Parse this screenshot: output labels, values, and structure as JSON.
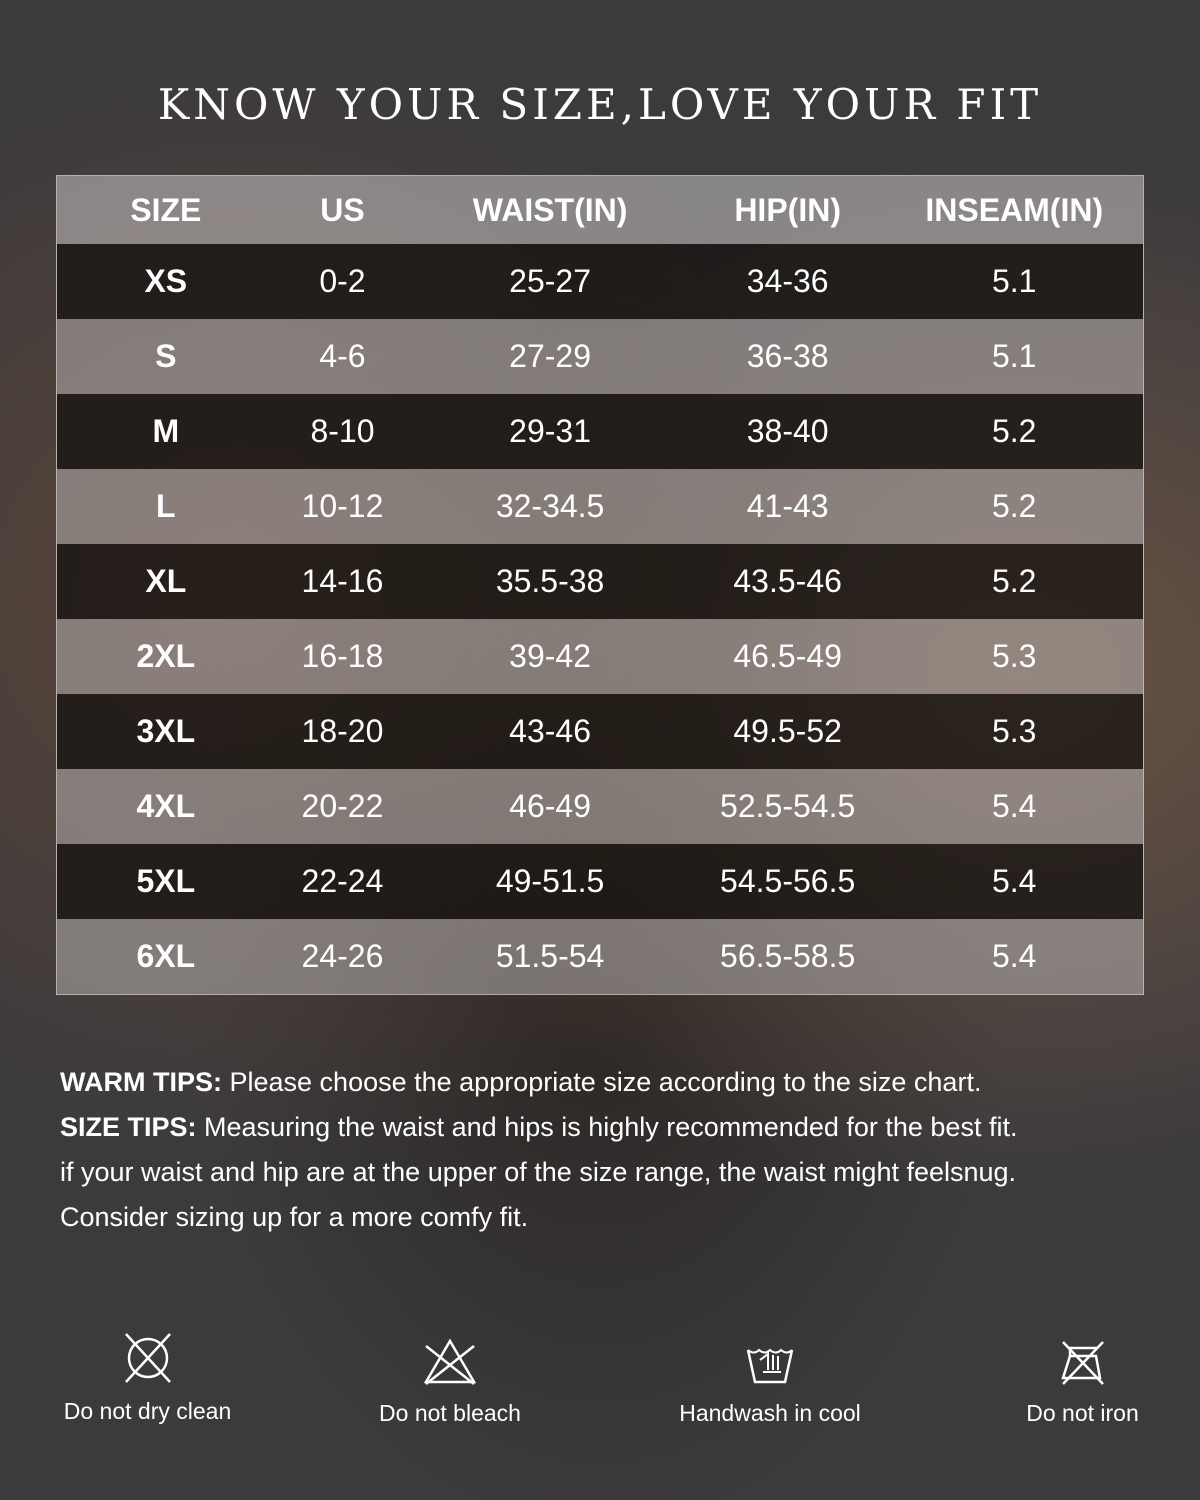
{
  "title": "KNOW YOUR SIZE,LOVE YOUR FIT",
  "table": {
    "headers": [
      "SIZE",
      "US",
      "WAIST(IN)",
      "HIP(IN)",
      "INSEAM(IN)"
    ],
    "rows": [
      [
        "XS",
        "0-2",
        "25-27",
        "34-36",
        "5.1"
      ],
      [
        "S",
        "4-6",
        "27-29",
        "36-38",
        "5.1"
      ],
      [
        "M",
        "8-10",
        "29-31",
        "38-40",
        "5.2"
      ],
      [
        "L",
        "10-12",
        "32-34.5",
        "41-43",
        "5.2"
      ],
      [
        "XL",
        "14-16",
        "35.5-38",
        "43.5-46",
        "5.2"
      ],
      [
        "2XL",
        "16-18",
        "39-42",
        "46.5-49",
        "5.3"
      ],
      [
        "3XL",
        "18-20",
        "43-46",
        "49.5-52",
        "5.3"
      ],
      [
        "4XL",
        "20-22",
        "46-49",
        "52.5-54.5",
        "5.4"
      ],
      [
        "5XL",
        "22-24",
        "49-51.5",
        "54.5-56.5",
        "5.4"
      ],
      [
        "6XL",
        "24-26",
        "51.5-54",
        "56.5-58.5",
        "5.4"
      ]
    ]
  },
  "tips": {
    "warm_label": "WARM TIPS:",
    "warm_text": " Please choose the appropriate size according to the size chart.",
    "size_label": "SIZE TIPS:",
    "size_text": " Measuring the waist and hips is highly recommended for the best fit.",
    "line3": "if your waist and hip are at the upper of the size range, the waist might feelsnug.",
    "line4": "Consider sizing up for a more comfy fit."
  },
  "care": [
    {
      "icon": "no-dry-clean-icon",
      "label": "Do not dry clean"
    },
    {
      "icon": "no-bleach-icon",
      "label": "Do not bleach"
    },
    {
      "icon": "handwash-icon",
      "label": "Handwash in cool"
    },
    {
      "icon": "no-iron-icon",
      "label": "Do not iron"
    }
  ]
}
